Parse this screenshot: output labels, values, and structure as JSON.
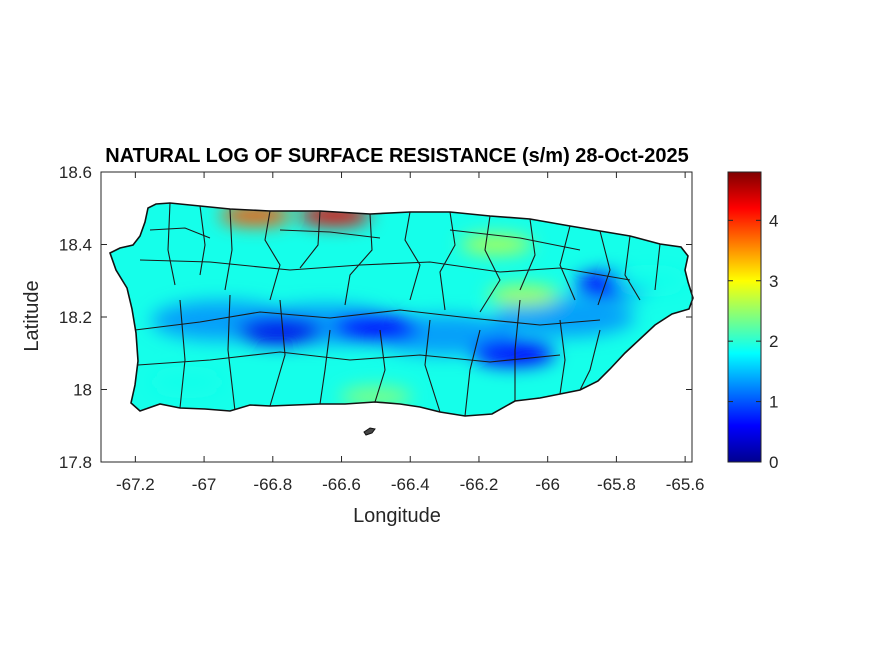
{
  "chart_data": {
    "type": "heatmap",
    "title": "NATURAL LOG OF SURFACE RESISTANCE (s/m) 28-Oct-2025",
    "xlabel": "Longitude",
    "ylabel": "Latitude",
    "xlim": [
      -67.3,
      -65.58
    ],
    "ylim": [
      17.8,
      18.6
    ],
    "xticks": [
      "-67.2",
      "-67",
      "-66.8",
      "-66.6",
      "-66.4",
      "-66.2",
      "-66",
      "-65.8",
      "-65.6"
    ],
    "xtick_values": [
      -67.2,
      -67.0,
      -66.8,
      -66.6,
      -66.4,
      -66.2,
      -66.0,
      -65.8,
      -65.6
    ],
    "yticks": [
      "18.6",
      "18.4",
      "18.2",
      "18",
      "17.8"
    ],
    "ytick_values": [
      18.6,
      18.4,
      18.2,
      18.0,
      17.8
    ],
    "colorbar": {
      "colormap": "jet",
      "range": [
        0,
        4.8
      ],
      "ticks": [
        "4",
        "3",
        "2",
        "1",
        "0"
      ],
      "tick_values": [
        4,
        3,
        2,
        1,
        0
      ]
    },
    "field_features": [
      {
        "lon": -66.78,
        "lat": 18.16,
        "value": 0.5
      },
      {
        "lon": -66.5,
        "lat": 18.17,
        "value": 0.6
      },
      {
        "lon": -66.1,
        "lat": 18.1,
        "value": 0.6
      },
      {
        "lon": -65.8,
        "lat": 18.29,
        "value": 0.6
      },
      {
        "lon": -66.62,
        "lat": 18.48,
        "value": 4.3
      },
      {
        "lon": -66.85,
        "lat": 18.48,
        "value": 3.8
      },
      {
        "lon": -66.15,
        "lat": 18.4,
        "value": 2.6
      },
      {
        "lon": -66.07,
        "lat": 18.26,
        "value": 2.6
      },
      {
        "lon": -66.5,
        "lat": 17.98,
        "value": 2.4
      },
      {
        "lon": -67.05,
        "lat": 18.02,
        "value": 1.9
      },
      {
        "lon": -65.7,
        "lat": 18.3,
        "value": 1.9
      }
    ],
    "background_value": 1.9,
    "grid": false,
    "legend": "colorbar-right"
  }
}
